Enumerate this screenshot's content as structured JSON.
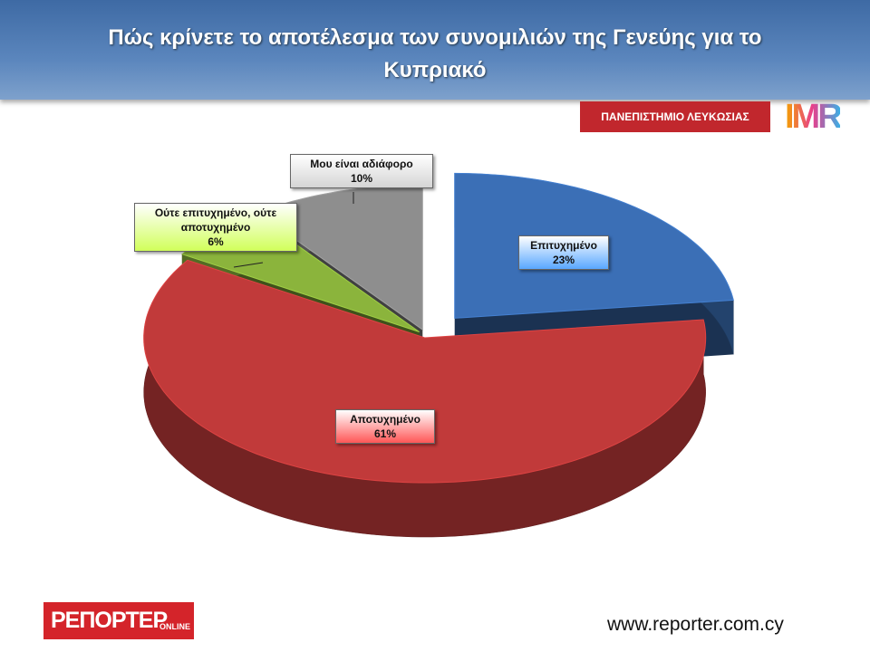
{
  "header": {
    "title": "Πώς κρίνετε το αποτέλεσμα των συνομιλιών της Γενεύης για το Κυπριακό"
  },
  "logos": {
    "university": "ΠΑΝΕΠΙΣΤΗΜΙΟ ΛΕΥΚΩΣΙΑΣ",
    "imr": "IMR",
    "reporter": "ΡΕΠΟΡΤΕΡ",
    "reporter_sub": "ONLINE"
  },
  "footer": {
    "url": "www.reporter.com.cy"
  },
  "chart_data": {
    "type": "pie",
    "categories": [
      "Επιτυχημένο",
      "Αποτυχημένο",
      "Ούτε επιτυχημένο, ούτε αποτυχημένο",
      "Μου είναι αδιάφορο"
    ],
    "values": [
      23,
      61,
      6,
      10
    ],
    "value_labels": [
      "23%",
      "61%",
      "6%",
      "10%"
    ],
    "colors": [
      "#3b6fb6",
      "#c13a3a",
      "#8bb43c",
      "#8e8e8e"
    ]
  }
}
